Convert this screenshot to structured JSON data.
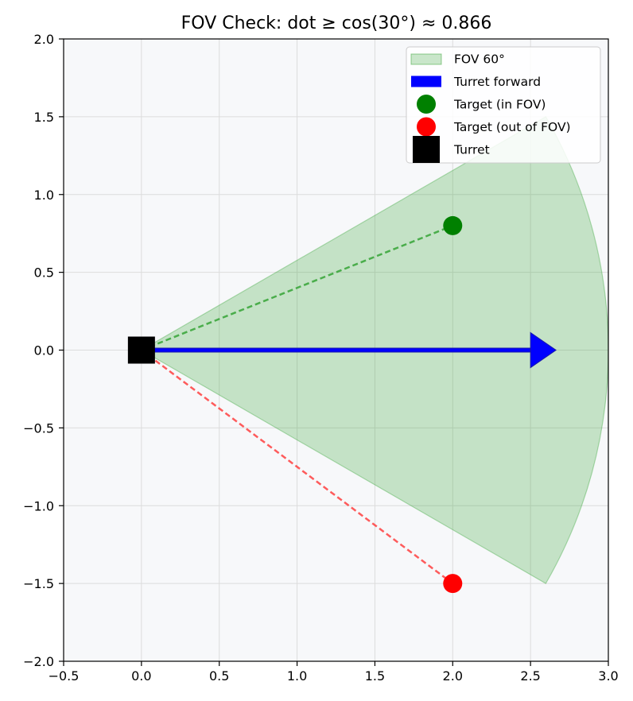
{
  "chart_data": {
    "type": "scatter",
    "title": "FOV Check: dot ≥ cos(30°) ≈ 0.866",
    "xlabel": "",
    "ylabel": "",
    "xlim": [
      -0.5,
      3.0
    ],
    "ylim": [
      -2.0,
      2.0
    ],
    "x_ticks": [
      {
        "value": -0.5,
        "label": "−0.5"
      },
      {
        "value": 0.0,
        "label": "0.0"
      },
      {
        "value": 0.5,
        "label": "0.5"
      },
      {
        "value": 1.0,
        "label": "1.0"
      },
      {
        "value": 1.5,
        "label": "1.5"
      },
      {
        "value": 2.0,
        "label": "2.0"
      },
      {
        "value": 2.5,
        "label": "2.5"
      },
      {
        "value": 3.0,
        "label": "3.0"
      }
    ],
    "y_ticks": [
      {
        "value": -2.0,
        "label": "−2.0"
      },
      {
        "value": -1.5,
        "label": "−1.5"
      },
      {
        "value": -1.0,
        "label": "−1.0"
      },
      {
        "value": -0.5,
        "label": "−0.5"
      },
      {
        "value": 0.0,
        "label": "0.0"
      },
      {
        "value": 0.5,
        "label": "0.5"
      },
      {
        "value": 1.0,
        "label": "1.0"
      },
      {
        "value": 1.5,
        "label": "1.5"
      },
      {
        "value": 2.0,
        "label": "2.0"
      }
    ],
    "grid": true,
    "legend_position": "top-right",
    "fov_wedge": {
      "name": "FOV 60°",
      "center": [
        0,
        0
      ],
      "radius": 3.0,
      "theta_min_deg": -30,
      "theta_max_deg": 30,
      "color": "#2ca02c"
    },
    "arrow": {
      "name": "Turret forward",
      "from": [
        0,
        0
      ],
      "to": [
        2.5,
        0
      ],
      "color": "#0000ff"
    },
    "turret": {
      "name": "Turret",
      "x": 0,
      "y": 0,
      "color": "#000000"
    },
    "targets": [
      {
        "name": "Target (in FOV)",
        "x": 2.0,
        "y": 0.8,
        "color": "#008000",
        "line_color": "#2ca02c"
      },
      {
        "name": "Target (out of FOV)",
        "x": 2.0,
        "y": -1.5,
        "color": "#ff0000",
        "line_color": "#ff3333"
      }
    ],
    "legend": [
      {
        "label": "FOV 60°",
        "kind": "patch",
        "color": "#2ca02c"
      },
      {
        "label": "Turret forward",
        "kind": "arrow",
        "color": "#0000ff"
      },
      {
        "label": "Target (in FOV)",
        "kind": "circle",
        "color": "#008000"
      },
      {
        "label": "Target (out of FOV)",
        "kind": "circle",
        "color": "#ff0000"
      },
      {
        "label": "Turret",
        "kind": "square",
        "color": "#000000"
      }
    ],
    "colors": {
      "plot_background": "#f7f8fa",
      "grid": "#dcdcdc",
      "frame": "#000000"
    }
  }
}
